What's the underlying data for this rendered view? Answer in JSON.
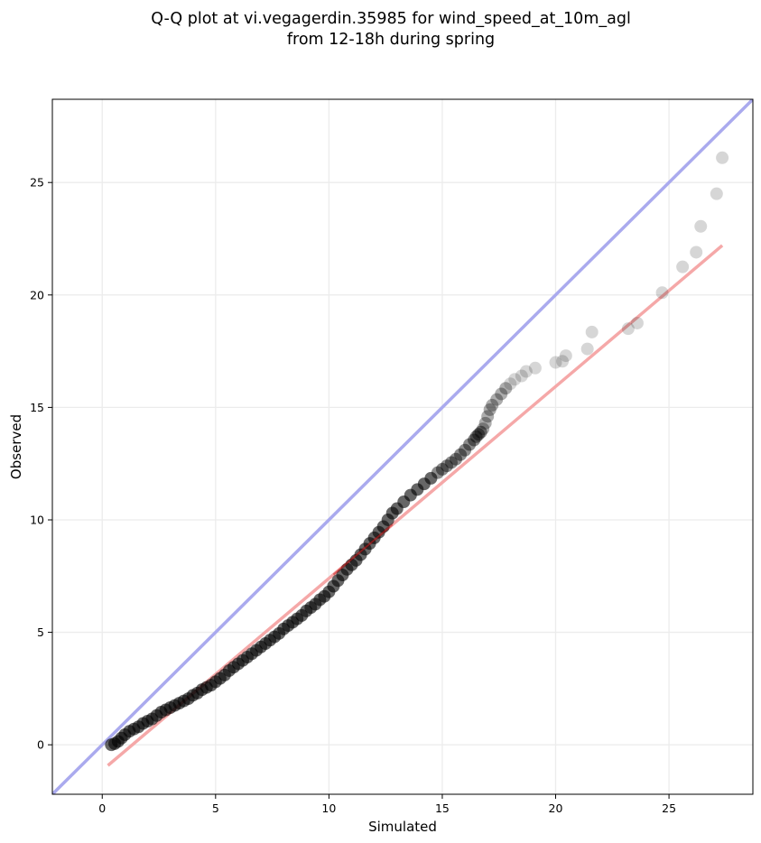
{
  "chart_data": {
    "type": "scatter",
    "title": [
      "Q-Q plot at vi.vegagerdin.35985 for wind_speed_at_10m_agl",
      "from 12-18h during spring"
    ],
    "xlabel": "Simulated",
    "ylabel": "Observed",
    "xlim": [
      -2.2,
      28.7
    ],
    "ylim": [
      -2.2,
      28.7
    ],
    "xticks": [
      0,
      5,
      10,
      15,
      20,
      25
    ],
    "yticks": [
      0,
      5,
      10,
      15,
      20,
      25
    ],
    "grid": true,
    "colors": {
      "points": "#000000",
      "identity_line": "#aaaaee",
      "fit_line": "#f5a8a8",
      "fit_segment_dark": "#c81e1e",
      "grid": "#ececec"
    },
    "identity_line": {
      "x": [
        -2.2,
        28.7
      ],
      "y": [
        -2.2,
        28.7
      ]
    },
    "fit_line": {
      "x": [
        0.25,
        27.35
      ],
      "y": [
        -0.92,
        22.2
      ]
    },
    "quantiles": {
      "x": [
        0.4,
        0.55,
        0.7,
        0.85,
        1.0,
        1.2,
        1.4,
        1.6,
        1.8,
        2.0,
        2.2,
        2.4,
        2.6,
        2.8,
        3.0,
        3.2,
        3.4,
        3.6,
        3.8,
        4.0,
        4.2,
        4.4,
        4.6,
        4.8,
        5.0,
        5.2,
        5.4,
        5.6,
        5.8,
        6.0,
        6.2,
        6.4,
        6.6,
        6.8,
        7.0,
        7.2,
        7.4,
        7.6,
        7.8,
        8.0,
        8.2,
        8.4,
        8.6,
        8.8,
        9.0,
        9.2,
        9.4,
        9.6,
        9.8,
        10.0,
        10.2,
        10.4,
        10.6,
        10.8,
        11.0,
        11.2,
        11.4,
        11.6,
        11.8,
        12.0,
        12.2,
        12.4,
        12.6,
        12.8,
        13.0,
        13.3,
        13.6,
        13.9,
        14.2,
        14.5,
        14.8,
        15.0,
        15.2,
        15.4,
        15.6,
        15.8,
        16.0,
        16.2,
        16.4,
        16.5,
        16.6,
        16.7,
        16.8,
        16.9,
        17.0,
        17.1,
        17.2,
        17.4,
        17.6,
        17.8,
        18.0,
        18.2,
        18.5,
        18.7,
        19.1,
        20.0,
        20.3,
        20.45,
        21.4,
        21.6,
        23.2,
        23.6,
        24.7,
        25.6,
        26.2,
        26.4,
        27.1,
        27.35
      ],
      "y": [
        0.0,
        0.05,
        0.15,
        0.3,
        0.45,
        0.6,
        0.7,
        0.8,
        0.95,
        1.05,
        1.15,
        1.3,
        1.45,
        1.55,
        1.65,
        1.75,
        1.85,
        1.95,
        2.05,
        2.2,
        2.3,
        2.45,
        2.55,
        2.65,
        2.8,
        2.95,
        3.1,
        3.3,
        3.45,
        3.6,
        3.75,
        3.9,
        4.05,
        4.2,
        4.35,
        4.5,
        4.65,
        4.8,
        4.95,
        5.15,
        5.3,
        5.45,
        5.6,
        5.75,
        5.95,
        6.1,
        6.25,
        6.45,
        6.6,
        6.8,
        7.05,
        7.3,
        7.55,
        7.8,
        8.0,
        8.2,
        8.45,
        8.7,
        8.95,
        9.2,
        9.45,
        9.7,
        10.0,
        10.3,
        10.5,
        10.8,
        11.1,
        11.35,
        11.6,
        11.85,
        12.1,
        12.25,
        12.4,
        12.55,
        12.7,
        12.9,
        13.1,
        13.35,
        13.55,
        13.7,
        13.8,
        13.9,
        14.05,
        14.3,
        14.6,
        14.9,
        15.1,
        15.35,
        15.6,
        15.85,
        16.05,
        16.25,
        16.4,
        16.6,
        16.75,
        17.0,
        17.05,
        17.3,
        17.6,
        18.35,
        18.5,
        18.75,
        20.1,
        21.25,
        21.9,
        23.05,
        24.5,
        26.1
      ]
    }
  }
}
